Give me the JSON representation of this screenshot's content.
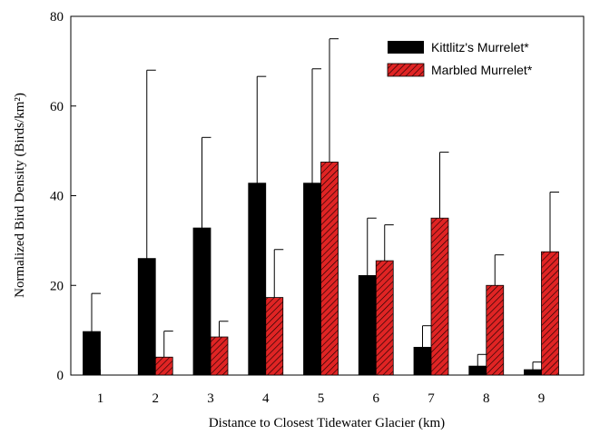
{
  "chart_data": {
    "type": "bar",
    "xlabel": "Distance to Closest Tidewater Glacier (km)",
    "ylabel": "Normalized Bird Density (Birds/km²)",
    "ylim": [
      0,
      80
    ],
    "yticks": [
      0,
      20,
      40,
      60,
      80
    ],
    "categories": [
      "1",
      "2",
      "3",
      "4",
      "5",
      "6",
      "7",
      "8",
      "9"
    ],
    "legend_position": "top-right",
    "grid": false,
    "series": [
      {
        "name": "Kittlitz's Murrelet*",
        "color": "#000000",
        "pattern": "solid",
        "values": [
          9.7,
          26,
          32.8,
          42.8,
          42.8,
          22.2,
          6.2,
          2.0,
          1.2
        ],
        "error_upper": [
          18.2,
          68,
          53,
          66.6,
          68.3,
          35.0,
          11.0,
          4.6,
          2.9
        ]
      },
      {
        "name": "Marbled Murrelet*",
        "color": "#d92020",
        "pattern": "hatched",
        "values": [
          0,
          4.0,
          8.5,
          17.3,
          47.5,
          25.5,
          35.0,
          20.0,
          27.5
        ],
        "error_upper": [
          null,
          9.8,
          12.0,
          28.0,
          75.0,
          33.5,
          49.7,
          26.8,
          40.8
        ]
      }
    ]
  }
}
